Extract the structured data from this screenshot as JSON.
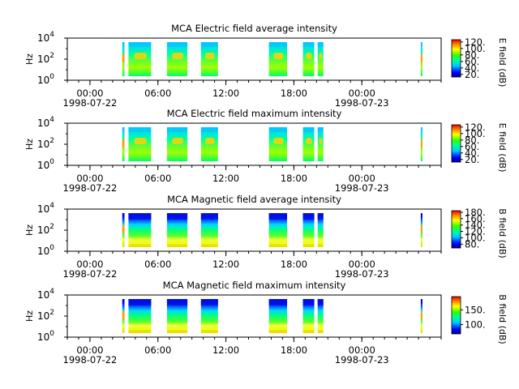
{
  "time_axis": {
    "ticks": [
      "00:00",
      "06:00",
      "12:00",
      "18:00",
      "00:00"
    ],
    "start_date": "1998-07-22",
    "end_date": "1998-07-23",
    "range_hours": [
      -2,
      31
    ],
    "tick_hours": [
      0,
      6,
      12,
      18,
      24
    ],
    "minor_step_hours": 1
  },
  "freq_axis": {
    "label": "Hz",
    "scale": "log",
    "ticks": [
      {
        "base": "10",
        "exp": "0"
      },
      {
        "base": "10",
        "exp": "2"
      },
      {
        "base": "10",
        "exp": "4"
      }
    ]
  },
  "colormap": "rainbow (blue → cyan → green → yellow → red)",
  "chart_data": [
    {
      "type": "heatmap",
      "title": "MCA  Electric field average intensity",
      "xlabel": "",
      "ylabel": "Hz",
      "colorbar_label": "E field (dB)",
      "colorbar_ticks": [
        "20.",
        "40.",
        "60.",
        "80.",
        "100.",
        "120."
      ],
      "colorbar_range": [
        12,
        127
      ],
      "data_intervals_hours": [
        [
          2.85,
          3.05
        ],
        [
          3.4,
          5.4
        ],
        [
          6.8,
          8.6
        ],
        [
          9.8,
          11.3
        ],
        [
          15.8,
          17.4
        ],
        [
          18.8,
          19.8
        ],
        [
          20.1,
          20.6
        ],
        [
          29.2,
          29.35
        ]
      ]
    },
    {
      "type": "heatmap",
      "title": "MCA  Electric field maximum intensity",
      "xlabel": "",
      "ylabel": "Hz",
      "colorbar_label": "E field (dB)",
      "colorbar_ticks": [
        "20.",
        "40.",
        "60.",
        "80.",
        "100.",
        "120."
      ],
      "colorbar_range": [
        12,
        127
      ],
      "data_intervals_hours": [
        [
          2.85,
          3.05
        ],
        [
          3.4,
          5.4
        ],
        [
          6.8,
          8.6
        ],
        [
          9.8,
          11.3
        ],
        [
          15.8,
          17.4
        ],
        [
          18.8,
          19.8
        ],
        [
          20.1,
          20.6
        ],
        [
          29.2,
          29.35
        ]
      ]
    },
    {
      "type": "heatmap",
      "title": "MCA  Magnetic field average intensity",
      "xlabel": "",
      "ylabel": "Hz",
      "colorbar_label": "B field (dB)",
      "colorbar_ticks": [
        "80.",
        "100.",
        "120.",
        "140.",
        "160.",
        "180."
      ],
      "colorbar_range": [
        68,
        185
      ],
      "data_intervals_hours": [
        [
          2.85,
          3.05
        ],
        [
          3.4,
          5.4
        ],
        [
          6.8,
          8.6
        ],
        [
          9.8,
          11.3
        ],
        [
          15.8,
          17.4
        ],
        [
          18.8,
          19.8
        ],
        [
          20.1,
          20.6
        ],
        [
          29.2,
          29.35
        ]
      ]
    },
    {
      "type": "heatmap",
      "title": "MCA  Magnetic field maximum intensity",
      "xlabel": "",
      "ylabel": "Hz",
      "colorbar_label": "B field (dB)",
      "colorbar_ticks": [
        "100.",
        "150."
      ],
      "colorbar_range": [
        68,
        195
      ],
      "data_intervals_hours": [
        [
          2.85,
          3.05
        ],
        [
          3.4,
          5.4
        ],
        [
          6.8,
          8.6
        ],
        [
          9.8,
          11.3
        ],
        [
          15.8,
          17.4
        ],
        [
          18.8,
          19.8
        ],
        [
          20.1,
          20.6
        ],
        [
          29.2,
          29.35
        ]
      ]
    }
  ]
}
